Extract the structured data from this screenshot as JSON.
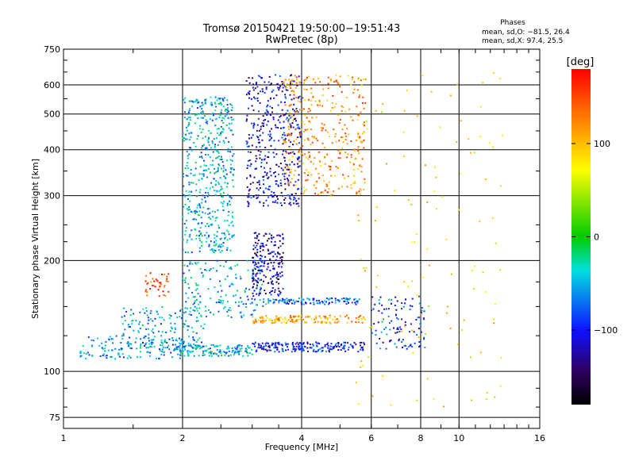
{
  "chart_data": {
    "type": "scatter",
    "title": "Tromsø 20150421 19:50:00−19:51:43",
    "subtitle": "RwPretec (8p)",
    "xlabel": "Frequency [MHz]",
    "ylabel": "Stationary phase Virtual Height [km]",
    "x_scale": "log2",
    "y_scale": "log",
    "xlim": [
      1,
      16
    ],
    "ylim": [
      70,
      750
    ],
    "x_ticks": [
      1,
      2,
      4,
      6,
      8,
      10,
      16
    ],
    "x_tick_labels": [
      "1",
      "2",
      "4",
      "6",
      "8",
      "10",
      "16"
    ],
    "y_ticks": [
      75,
      100,
      200,
      300,
      400,
      500,
      600,
      750
    ],
    "y_tick_labels": [
      "75",
      "100",
      "200",
      "300",
      "400",
      "500",
      "600",
      "750"
    ],
    "grid": true,
    "annotation": {
      "title": "Phases",
      "line1": "mean, sd,O: −81.5, 26.4",
      "line2": "mean, sd,X:  97.4, 25.5"
    },
    "colorbar": {
      "label": "[deg]",
      "range": [
        -180,
        180
      ],
      "ticks": [
        100,
        0,
        -100
      ],
      "tick_labels": [
        "100",
        "0",
        "−100"
      ]
    },
    "traces": [
      {
        "x_range": [
          1.1,
          2.0
        ],
        "y_range": [
          108,
          125
        ],
        "phase": -60,
        "n": 140
      },
      {
        "x_range": [
          1.4,
          2.3
        ],
        "y_range": [
          115,
          150
        ],
        "phase": -55,
        "n": 150
      },
      {
        "x_range": [
          1.6,
          1.85
        ],
        "y_range": [
          160,
          185
        ],
        "phase": 150,
        "n": 40
      },
      {
        "x_range": [
          1.9,
          3.0
        ],
        "y_range": [
          110,
          118
        ],
        "phase": -50,
        "n": 150
      },
      {
        "x_range": [
          2.0,
          2.7
        ],
        "y_range": [
          210,
          560
        ],
        "phase": -50,
        "n": 520
      },
      {
        "x_range": [
          2.0,
          3.2
        ],
        "y_range": [
          140,
          200
        ],
        "phase": -55,
        "n": 160
      },
      {
        "x_range": [
          2.9,
          4.0
        ],
        "y_range": [
          280,
          640
        ],
        "phase": -110,
        "n": 420
      },
      {
        "x_range": [
          3.0,
          3.6
        ],
        "y_range": [
          160,
          240
        ],
        "phase": -120,
        "n": 200
      },
      {
        "x_range": [
          3.6,
          5.8
        ],
        "y_range": [
          300,
          640
        ],
        "phase": 120,
        "n": 360
      },
      {
        "x_range": [
          3.0,
          5.8
        ],
        "y_range": [
          135,
          142
        ],
        "phase": 110,
        "n": 150
      },
      {
        "x_range": [
          3.0,
          5.8
        ],
        "y_range": [
          113,
          120
        ],
        "phase": -100,
        "n": 200
      },
      {
        "x_range": [
          3.2,
          5.6
        ],
        "y_range": [
          152,
          158
        ],
        "phase": -80,
        "n": 110
      },
      {
        "x_range": [
          6.0,
          8.2
        ],
        "y_range": [
          115,
          160
        ],
        "phase": -90,
        "n": 110
      },
      {
        "x_range": [
          5.5,
          13.0
        ],
        "y_range": [
          80,
          650
        ],
        "phase": 80,
        "n": 120
      }
    ]
  }
}
